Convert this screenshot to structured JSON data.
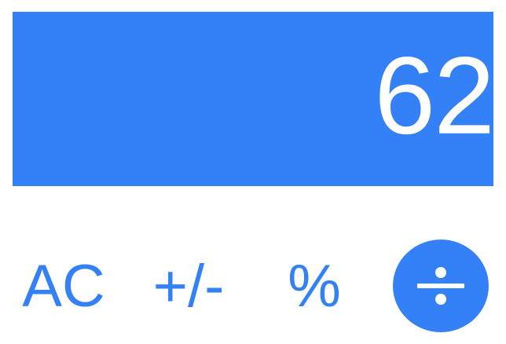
{
  "display": {
    "value": "62"
  },
  "keys": {
    "clear_label": "AC",
    "sign_label": "+/-",
    "percent_label": "%",
    "divide_icon": "divide-icon"
  },
  "colors": {
    "accent": "#3380f7",
    "background": "#ffffff",
    "display_text": "#ffffff"
  }
}
